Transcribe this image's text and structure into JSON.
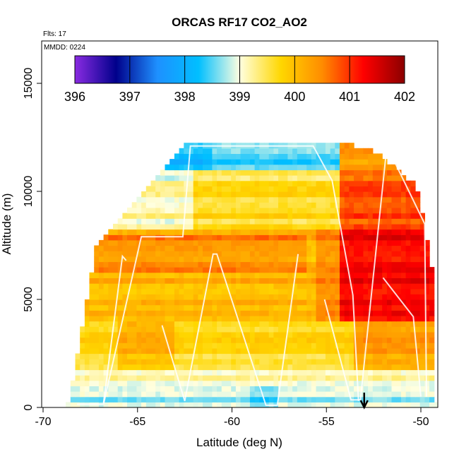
{
  "chart_data": {
    "type": "heatmap",
    "title": "ORCAS RF17 CO2_AO2",
    "xlabel": "Latitude (deg N)",
    "ylabel": "Altitude (m)",
    "xlim": [
      -70,
      -49
    ],
    "ylim": [
      0,
      16700
    ],
    "xticks": [
      -70,
      -65,
      -60,
      -55,
      -50
    ],
    "yticks": [
      0,
      5000,
      10000,
      15000
    ],
    "flights_label": "Flts: 17",
    "date_label": "MMDD: 0224",
    "colorbar": {
      "min": 396,
      "max": 402,
      "ticks": [
        396,
        397,
        398,
        399,
        400,
        401,
        402
      ],
      "colors": [
        "#8a2be2",
        "#00008b",
        "#1e90ff",
        "#00bfff",
        "#ffffe0",
        "#ffd700",
        "#ff8c00",
        "#ff0000",
        "#8b0000"
      ]
    },
    "marker": {
      "lat": -53,
      "label": "arrow"
    },
    "approx_field": [
      {
        "alt_range": [
          0,
          1500
        ],
        "lat_range": [
          -68.5,
          -49.5
        ],
        "value": 398.8
      },
      {
        "alt_range": [
          1500,
          4000
        ],
        "lat_range": [
          -68,
          -49.5
        ],
        "value": 399.9
      },
      {
        "alt_range": [
          4000,
          8000
        ],
        "lat_range": [
          -67,
          -54
        ],
        "value": 400.2
      },
      {
        "alt_range": [
          4000,
          8000
        ],
        "lat_range": [
          -54,
          -49.5
        ],
        "value": 401.3
      },
      {
        "alt_range": [
          8000,
          10500
        ],
        "lat_range": [
          -65,
          -54
        ],
        "value": 399.6
      },
      {
        "alt_range": [
          8000,
          11000
        ],
        "lat_range": [
          -54,
          -49.7
        ],
        "value": 400.9
      },
      {
        "alt_range": [
          10500,
          12300
        ],
        "lat_range": [
          -63,
          -54
        ],
        "value": 398.2
      }
    ]
  }
}
